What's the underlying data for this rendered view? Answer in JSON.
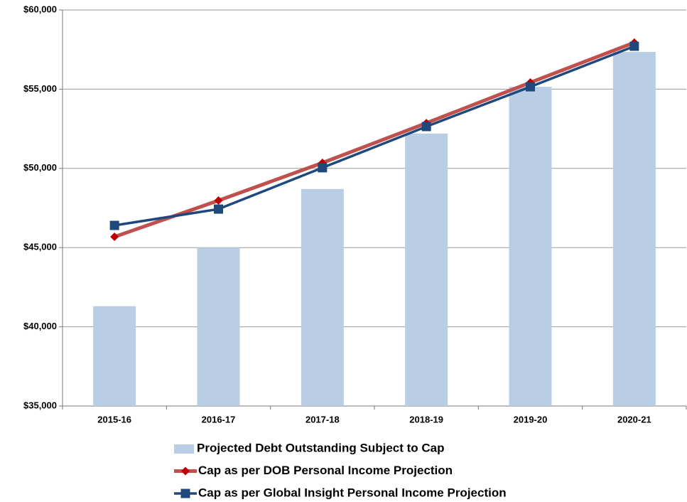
{
  "chart_data": {
    "type": "combo",
    "categories": [
      "2015-16",
      "2016-17",
      "2017-18",
      "2018-19",
      "2019-20",
      "2020-21"
    ],
    "series": [
      {
        "name": "Projected Debt Outstanding Subject to Cap",
        "type": "bar",
        "color": "#b9cde5",
        "values": [
          41300,
          45000,
          48700,
          52200,
          55150,
          57350
        ]
      },
      {
        "name": "Cap as per DOB Personal Income Projection",
        "type": "line",
        "color": "#c0504d",
        "marker": "diamond",
        "marker_color": "#c00000",
        "values": [
          45680,
          47970,
          50350,
          52860,
          55420,
          57940
        ]
      },
      {
        "name": "Cap as per Global Insight Personal Income Projection",
        "type": "line",
        "color": "#1f497d",
        "marker": "square",
        "marker_color": "#1f497d",
        "values": [
          46400,
          47430,
          50040,
          52640,
          55150,
          57710
        ]
      }
    ],
    "ylim": [
      35000,
      60000
    ],
    "yticks": [
      {
        "value": 35000,
        "label": "$35,000"
      },
      {
        "value": 40000,
        "label": "$40,000"
      },
      {
        "value": 45000,
        "label": "$45,000"
      },
      {
        "value": 50000,
        "label": "$50,000"
      },
      {
        "value": 55000,
        "label": "$55,000"
      },
      {
        "value": 60000,
        "label": "$60,000"
      }
    ],
    "grid": true,
    "legend": "bottom"
  }
}
